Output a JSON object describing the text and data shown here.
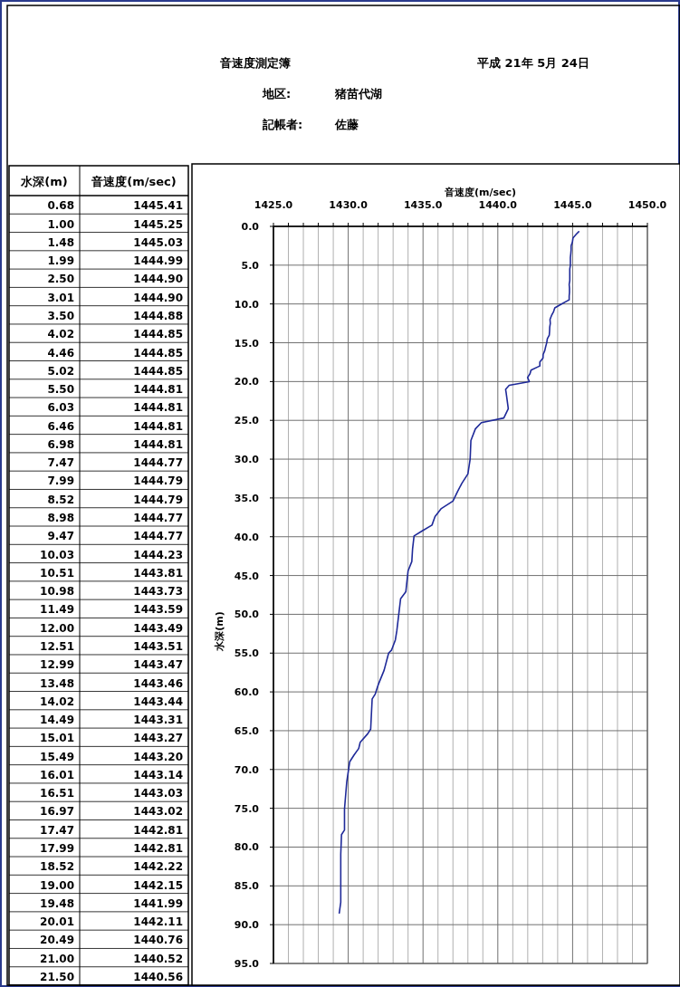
{
  "chart_data": [
    {
      "type": "other",
      "title": "音速度測定簿",
      "annotations": [
        "平成 21年 5月 24日",
        "地区:",
        "猪苗代湖",
        "記帳者:",
        "佐藤"
      ]
    },
    {
      "type": "other",
      "xlabel": "水深(m)",
      "ylabel": "音速度(m/sec)",
      "value_labels": [
        "1445.41",
        "1445.25",
        "1445.03",
        "1444.99",
        "1444.90",
        "1444.90",
        "1444.88",
        "1444.85",
        "1444.85",
        "1444.85",
        "1444.81",
        "1444.81",
        "1444.81",
        "1444.81",
        "1444.77",
        "1444.79",
        "1444.79",
        "1444.77",
        "1444.77",
        "1444.23",
        "1443.81",
        "1443.73",
        "1443.59",
        "1443.49",
        "1443.51",
        "1443.47",
        "1443.46",
        "1443.44",
        "1443.31",
        "1443.27",
        "1443.20",
        "1443.14",
        "1443.03",
        "1443.02",
        "1442.81",
        "1442.81",
        "1442.22",
        "1442.15",
        "1441.99",
        "1442.11",
        "1440.76",
        "1440.52",
        "1440.56"
      ],
      "categories": [
        "0.68",
        "1.00",
        "1.48",
        "1.99",
        "2.50",
        "3.01",
        "3.50",
        "4.02",
        "4.46",
        "5.02",
        "5.50",
        "6.03",
        "6.46",
        "6.98",
        "7.47",
        "7.99",
        "8.52",
        "8.98",
        "9.47",
        "10.03",
        "10.51",
        "10.98",
        "11.49",
        "12.00",
        "12.51",
        "12.99",
        "13.48",
        "14.02",
        "14.49",
        "15.01",
        "15.49",
        "16.01",
        "16.51",
        "16.97",
        "17.47",
        "17.99",
        "18.52",
        "19.00",
        "19.48",
        "20.01",
        "20.49",
        "21.00",
        "21.50"
      ],
      "values": [
        1445.41,
        1445.25,
        1445.03,
        1444.99,
        1444.9,
        1444.9,
        1444.88,
        1444.85,
        1444.85,
        1444.85,
        1444.81,
        1444.81,
        1444.81,
        1444.81,
        1444.77,
        1444.79,
        1444.79,
        1444.77,
        1444.77,
        1444.23,
        1443.81,
        1443.73,
        1443.59,
        1443.49,
        1443.51,
        1443.47,
        1443.46,
        1443.44,
        1443.31,
        1443.27,
        1443.2,
        1443.14,
        1443.03,
        1443.02,
        1442.81,
        1442.81,
        1442.22,
        1442.15,
        1441.99,
        1442.11,
        1440.76,
        1440.52,
        1440.56
      ]
    },
    {
      "type": "line",
      "xlabel": "音速度(m/sec)",
      "ylabel": "水深(m)",
      "grid": true,
      "xlim": [
        1425,
        1450
      ],
      "xticks": [
        {
          "value": 1425,
          "label": "1425.0"
        },
        {
          "value": 1426,
          "label": null
        },
        {
          "value": 1427,
          "label": null
        },
        {
          "value": 1428,
          "label": null
        },
        {
          "value": 1429,
          "label": null
        },
        {
          "value": 1430,
          "label": "1430.0"
        },
        {
          "value": 1431,
          "label": null
        },
        {
          "value": 1432,
          "label": null
        },
        {
          "value": 1433,
          "label": null
        },
        {
          "value": 1434,
          "label": null
        },
        {
          "value": 1435,
          "label": "1435.0"
        },
        {
          "value": 1436,
          "label": null
        },
        {
          "value": 1437,
          "label": null
        },
        {
          "value": 1438,
          "label": null
        },
        {
          "value": 1439,
          "label": null
        },
        {
          "value": 1440,
          "label": "1440.0"
        },
        {
          "value": 1441,
          "label": null
        },
        {
          "value": 1442,
          "label": null
        },
        {
          "value": 1443,
          "label": null
        },
        {
          "value": 1444,
          "label": null
        },
        {
          "value": 1445,
          "label": "1445.0"
        },
        {
          "value": 1446,
          "label": null
        },
        {
          "value": 1447,
          "label": null
        },
        {
          "value": 1448,
          "label": null
        },
        {
          "value": 1449,
          "label": null
        },
        {
          "value": 1450,
          "label": "1450.0"
        }
      ],
      "ylim": [
        95,
        0
      ],
      "yticks": [
        {
          "value": 0,
          "label": "0.0"
        },
        {
          "value": 5,
          "label": "5.0"
        },
        {
          "value": 10,
          "label": "10.0"
        },
        {
          "value": 15,
          "label": "15.0"
        },
        {
          "value": 20,
          "label": "20.0"
        },
        {
          "value": 25,
          "label": "25.0"
        },
        {
          "value": 30,
          "label": "30.0"
        },
        {
          "value": 35,
          "label": "35.0"
        },
        {
          "value": 40,
          "label": "40.0"
        },
        {
          "value": 45,
          "label": "45.0"
        },
        {
          "value": 50,
          "label": "50.0"
        },
        {
          "value": 55,
          "label": "55.0"
        },
        {
          "value": 60,
          "label": "60.0"
        },
        {
          "value": 65,
          "label": "65.0"
        },
        {
          "value": 70,
          "label": "70.0"
        },
        {
          "value": 75,
          "label": "75.0"
        },
        {
          "value": 80,
          "label": "80.0"
        },
        {
          "value": 85,
          "label": "85.0"
        },
        {
          "value": 90,
          "label": "90.0"
        },
        {
          "value": 95,
          "label": "95.0"
        }
      ],
      "marker": "none",
      "line_style": "solid",
      "series": [
        {
          "color": "#1f2a99",
          "x": [
            1445.41,
            1445.25,
            1445.03,
            1444.99,
            1444.9,
            1444.9,
            1444.88,
            1444.85,
            1444.85,
            1444.85,
            1444.81,
            1444.81,
            1444.81,
            1444.81,
            1444.77,
            1444.79,
            1444.79,
            1444.77,
            1444.77,
            1444.23,
            1443.81,
            1443.73,
            1443.59,
            1443.49,
            1443.51,
            1443.47,
            1443.46,
            1443.44,
            1443.31,
            1443.27,
            1443.2,
            1443.14,
            1443.03,
            1443.02,
            1442.81,
            1442.81,
            1442.22,
            1442.15,
            1441.99,
            1442.11,
            1440.76,
            1440.52,
            1440.56,
            1440.7,
            1440.4,
            1438.9,
            1438.5,
            1438.2,
            1438.15,
            1438.0,
            1437.6,
            1437.3,
            1437.0,
            1436.2,
            1435.8,
            1435.6,
            1434.9,
            1434.4,
            1434.3,
            1434.25,
            1434.0,
            1433.85,
            1433.5,
            1433.25,
            1433.15,
            1432.9,
            1432.7,
            1432.4,
            1432.0,
            1431.8,
            1431.6,
            1431.5,
            1431.3,
            1430.8,
            1430.7,
            1430.4,
            1430.1,
            1429.9,
            1429.75,
            1429.75,
            1429.55,
            1429.5,
            1429.5,
            1429.4
          ],
          "values": [
            0.68,
            1.0,
            1.48,
            1.99,
            2.5,
            3.01,
            3.5,
            4.02,
            4.46,
            5.02,
            5.5,
            6.03,
            6.46,
            6.98,
            7.47,
            7.99,
            8.52,
            8.98,
            9.47,
            10.03,
            10.51,
            10.98,
            11.49,
            12.0,
            12.51,
            12.99,
            13.48,
            14.02,
            14.49,
            15.01,
            15.49,
            16.01,
            16.51,
            16.97,
            17.47,
            17.99,
            18.52,
            19.0,
            19.48,
            20.01,
            20.49,
            21.0,
            21.5,
            23.5,
            24.7,
            25.3,
            26.1,
            27.6,
            30.0,
            31.9,
            33.1,
            34.2,
            35.4,
            36.4,
            37.4,
            38.5,
            39.3,
            39.9,
            41.6,
            43.2,
            44.4,
            47.1,
            48.0,
            52.1,
            53.3,
            54.6,
            55.0,
            57.2,
            59.1,
            60.3,
            60.9,
            64.8,
            65.4,
            66.5,
            67.3,
            68.1,
            69.0,
            71.6,
            75.1,
            77.8,
            78.4,
            80.9,
            87.1,
            88.5
          ]
        }
      ]
    }
  ]
}
